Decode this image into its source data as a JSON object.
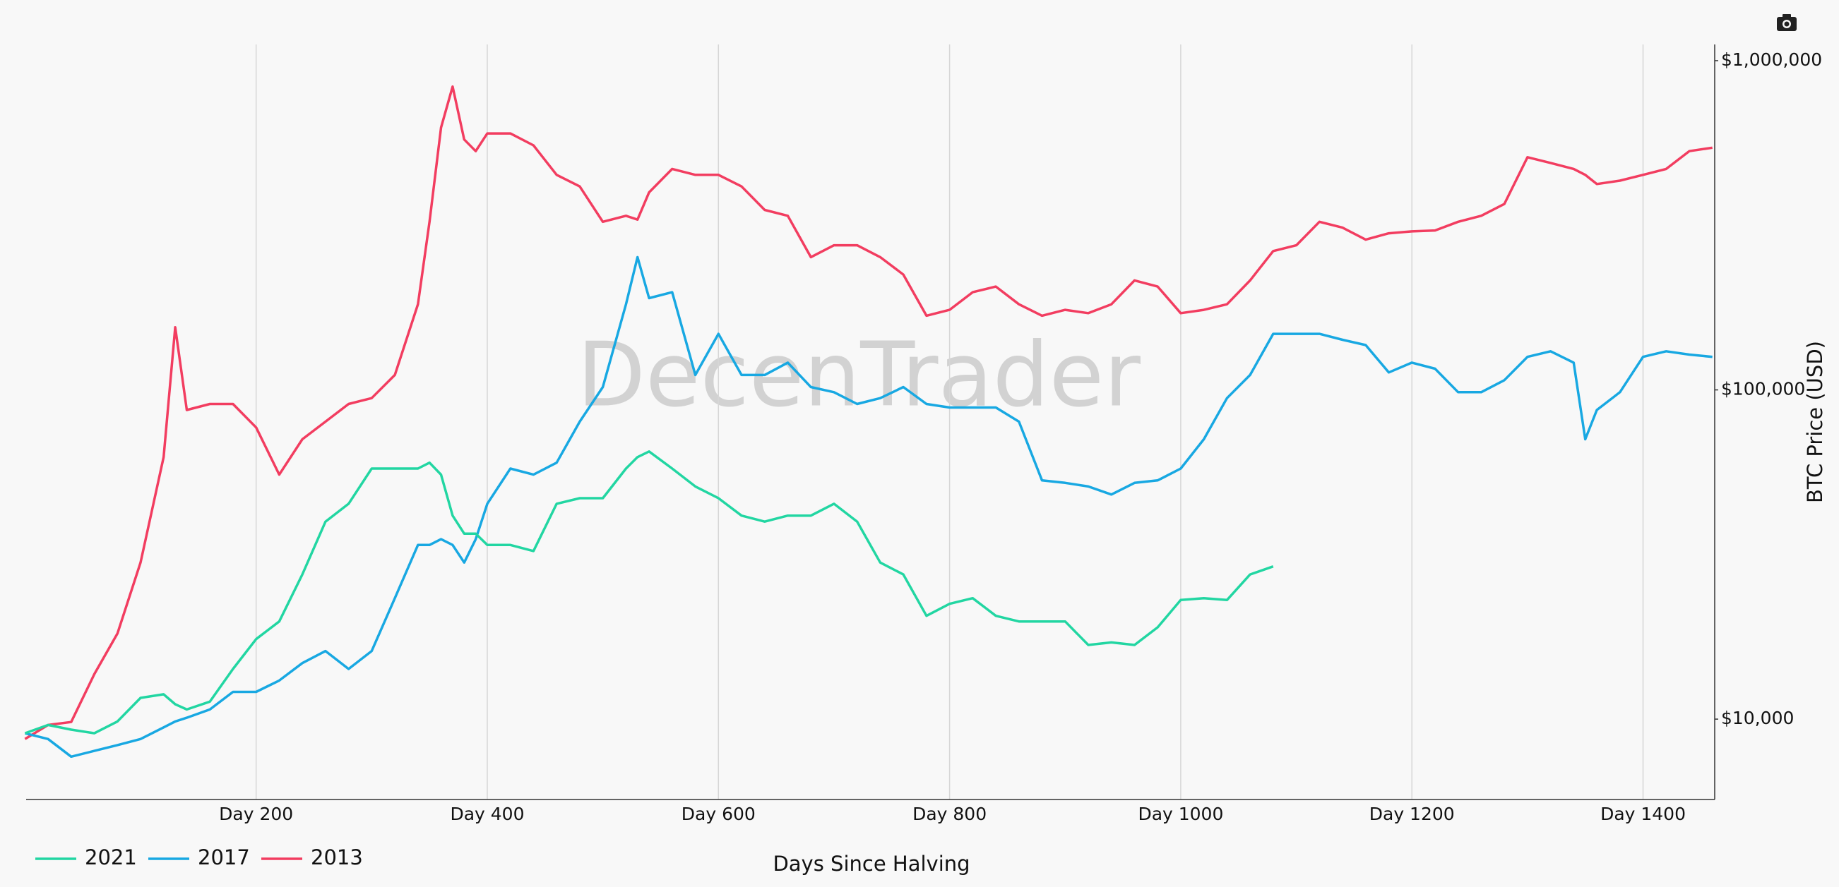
{
  "chart_data": {
    "type": "line",
    "x_label": "Days Since Halving",
    "y_label": "BTC Price (USD)",
    "watermark": "DecenTrader",
    "x": [
      0,
      20,
      40,
      60,
      80,
      100,
      120,
      130,
      140,
      160,
      180,
      200,
      220,
      240,
      260,
      280,
      300,
      320,
      340,
      350,
      360,
      370,
      380,
      390,
      400,
      420,
      440,
      460,
      480,
      500,
      520,
      530,
      540,
      560,
      580,
      600,
      620,
      640,
      660,
      680,
      700,
      720,
      740,
      760,
      780,
      800,
      820,
      840,
      860,
      880,
      900,
      920,
      940,
      960,
      980,
      1000,
      1020,
      1040,
      1060,
      1080,
      1100,
      1120,
      1140,
      1160,
      1180,
      1200,
      1220,
      1240,
      1260,
      1280,
      1300,
      1320,
      1340,
      1350,
      1360,
      1380,
      1400,
      1420,
      1440,
      1460
    ],
    "series": [
      {
        "name": "2021",
        "color": "#22d6a2",
        "values": [
          9060,
          9600,
          9290,
          9060,
          9840,
          11600,
          11900,
          11100,
          10700,
          11300,
          14200,
          17500,
          19800,
          27500,
          39800,
          45100,
          57700,
          57700,
          57700,
          60100,
          55300,
          41500,
          36600,
          36600,
          33800,
          33800,
          32400,
          45100,
          46900,
          46900,
          57700,
          62500,
          65000,
          57700,
          50900,
          46900,
          41500,
          39800,
          41500,
          41500,
          45100,
          39800,
          29900,
          27500,
          20600,
          22400,
          23300,
          20600,
          19800,
          19800,
          19800,
          16800,
          17100,
          16800,
          19000,
          23000,
          23300,
          23000,
          27500,
          29100,
          null,
          null,
          null,
          null,
          null,
          null,
          null,
          null,
          null,
          null,
          null,
          null,
          null,
          null,
          null,
          null,
          null,
          null,
          null,
          null
        ]
      },
      {
        "name": "2017",
        "color": "#18a8e2",
        "values": [
          9060,
          8700,
          7690,
          8010,
          8340,
          8700,
          9440,
          9840,
          10100,
          10700,
          12100,
          12100,
          13100,
          14800,
          16100,
          14200,
          16100,
          23300,
          33800,
          33800,
          35200,
          33800,
          29900,
          35200,
          45100,
          57700,
          55300,
          60100,
          80100,
          102000,
          182000,
          253000,
          190000,
          198000,
          111000,
          148000,
          111000,
          111000,
          121000,
          102000,
          98400,
          90600,
          94400,
          102000,
          90600,
          88400,
          88400,
          88400,
          80100,
          53100,
          52200,
          50900,
          48100,
          52200,
          53100,
          57700,
          70800,
          94400,
          111000,
          148000,
          148000,
          148000,
          142000,
          136800,
          113000,
          121000,
          116000,
          98400,
          98400,
          107000,
          126000,
          131000,
          121000,
          70800,
          86900,
          98400,
          126000,
          131000,
          128000,
          126000
        ]
      },
      {
        "name": "2013",
        "color": "#f23d60",
        "values": [
          8700,
          9600,
          9800,
          13700,
          18200,
          29900,
          62500,
          155000,
          86900,
          90600,
          90600,
          76900,
          55300,
          70800,
          80100,
          90600,
          94400,
          111000,
          182000,
          324000,
          626000,
          834000,
          576000,
          531000,
          601000,
          601000,
          553000,
          450000,
          415000,
          324000,
          338000,
          329000,
          398000,
          469000,
          450000,
          450000,
          415000,
          352000,
          338000,
          253000,
          275000,
          275000,
          253000,
          224000,
          168000,
          175000,
          198000,
          206000,
          182000,
          168000,
          175000,
          171000,
          182000,
          215000,
          206000,
          171000,
          175000,
          182000,
          215000,
          264000,
          275000,
          324000,
          311000,
          286000,
          299000,
          303000,
          305000,
          324000,
          338000,
          367000,
          509000,
          489000,
          469000,
          450000,
          422000,
          432000,
          450000,
          469000,
          531000,
          544000
        ]
      }
    ],
    "xlim": [
      1,
      1462
    ],
    "xticks": [
      {
        "value": 200,
        "label": "Day 200"
      },
      {
        "value": 400,
        "label": "Day 400"
      },
      {
        "value": 600,
        "label": "Day 600"
      },
      {
        "value": 800,
        "label": "Day 800"
      },
      {
        "value": 1000,
        "label": "Day 1000"
      },
      {
        "value": 1200,
        "label": "Day 1200"
      },
      {
        "value": 1400,
        "label": "Day 1400"
      }
    ],
    "ylim": [
      5700,
      1120000
    ],
    "yticks": [
      {
        "value": 10000,
        "label": "$10,000"
      },
      {
        "value": 100000,
        "label": "$100,000"
      },
      {
        "value": 1000000,
        "label": "$1,000,000"
      }
    ],
    "ylog": true,
    "xgrid": true,
    "legend": "bottom-left"
  }
}
